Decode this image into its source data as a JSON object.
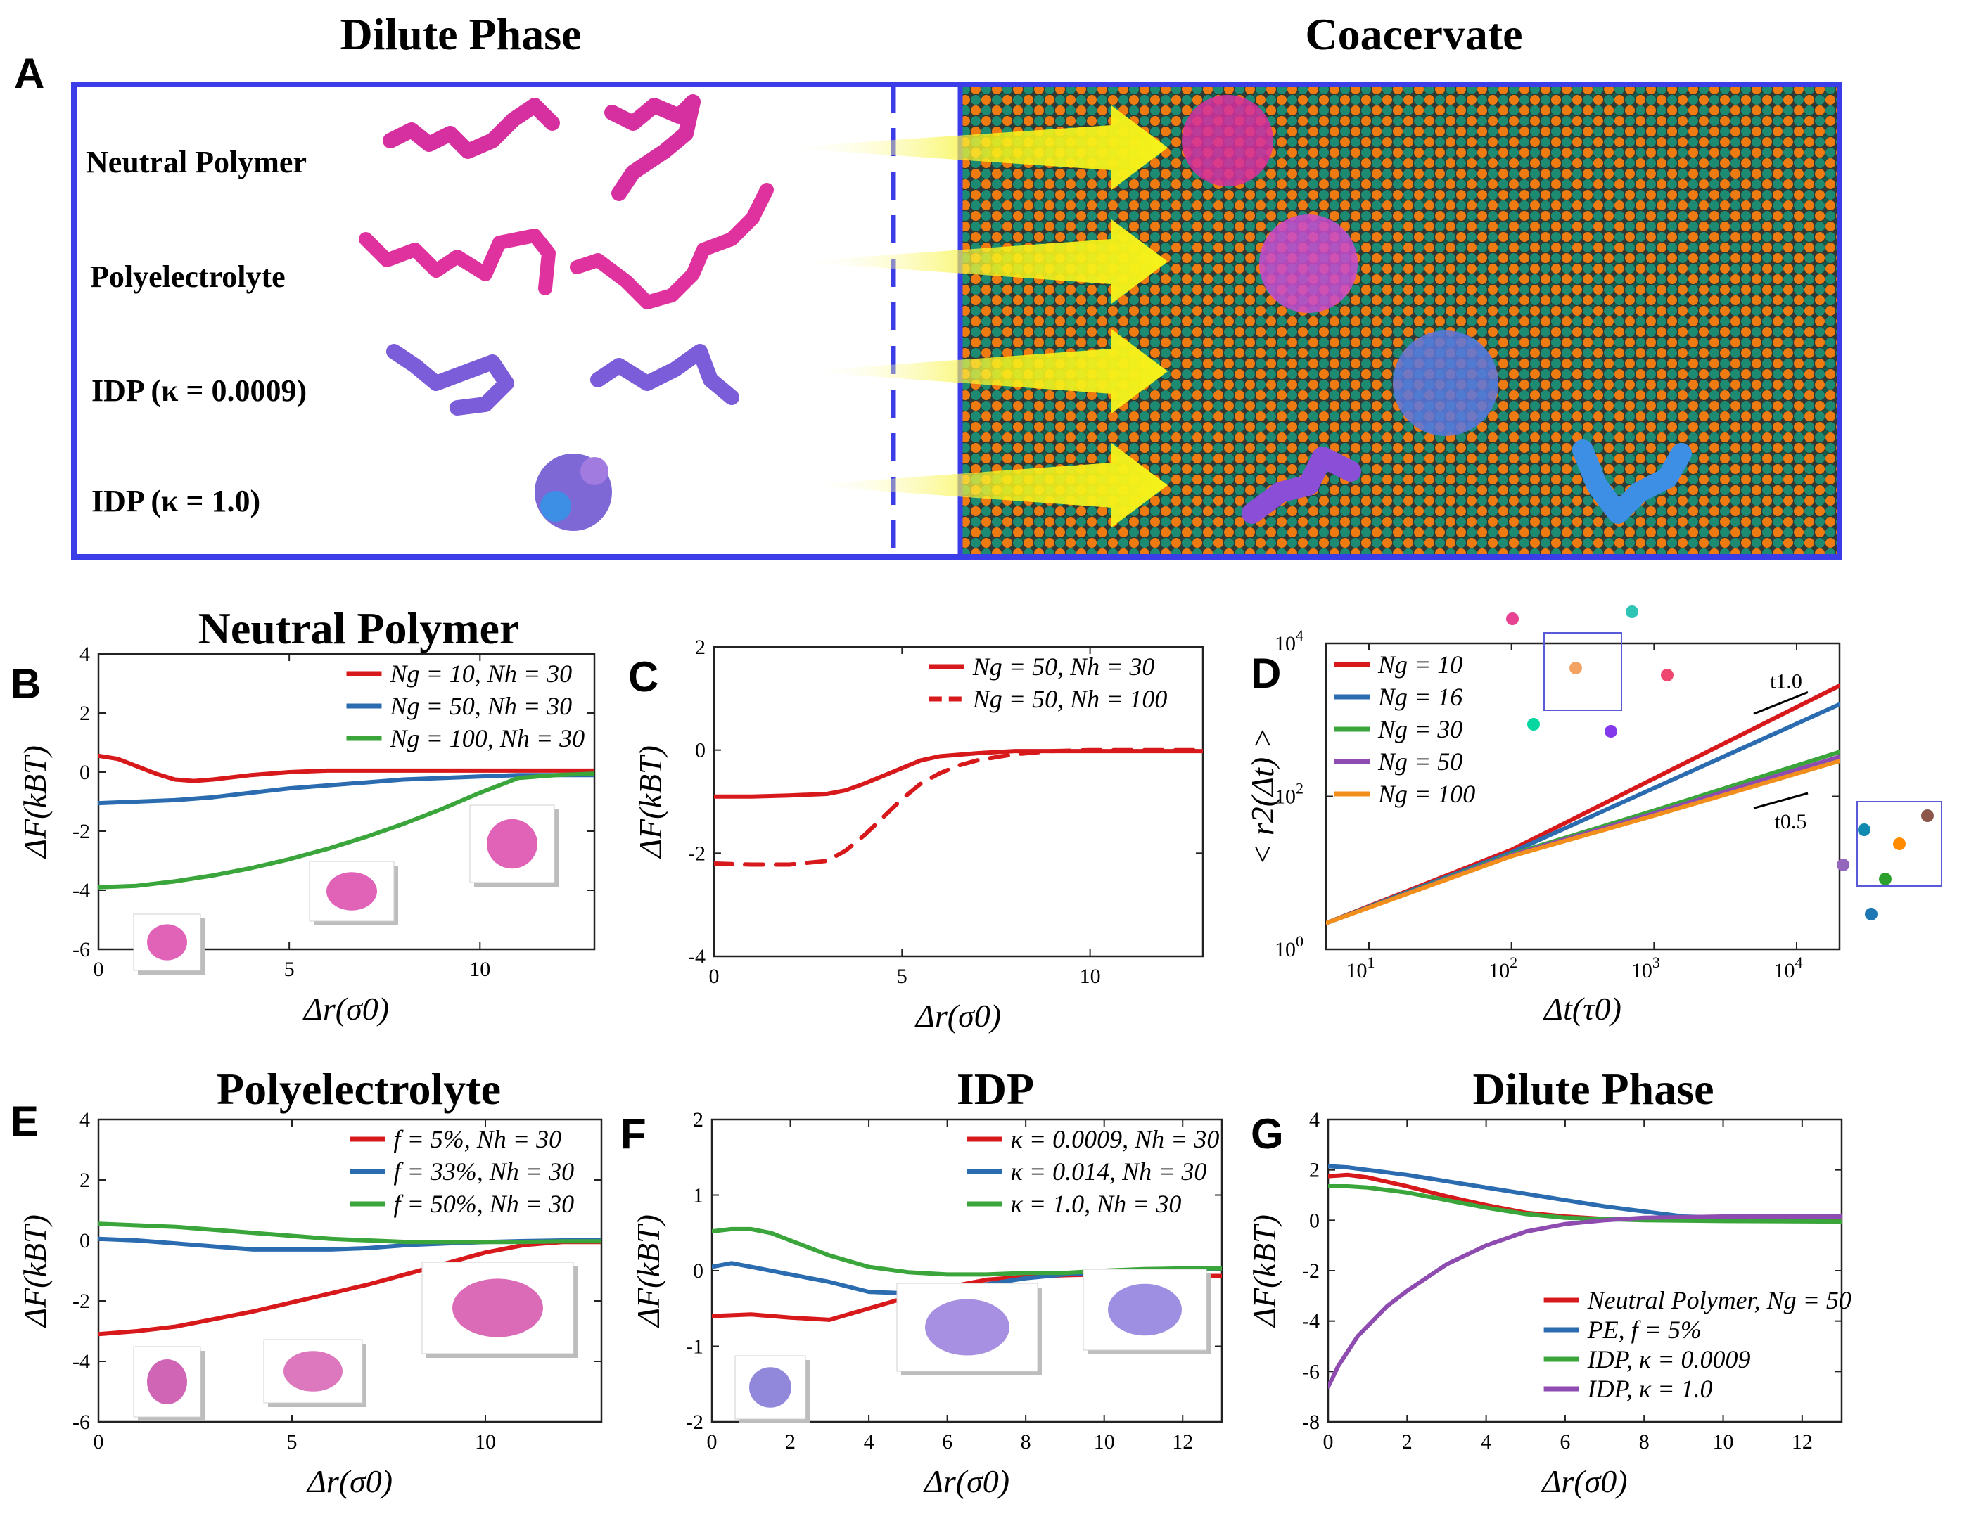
{
  "panel_a": {
    "label": "A",
    "left_title": "Dilute Phase",
    "right_title": "Coacervate",
    "rows": [
      "Neutral Polymer",
      "Polyelectrolyte",
      "IDP (κ = 0.0009)",
      "IDP (κ = 1.0)"
    ],
    "colors": {
      "frame": "#3b3ee8",
      "bead_orange": "#ee7a12",
      "bead_teal": "#1d8b72",
      "pink": "#d62fa0",
      "blue": "#3d8fe6",
      "purple": "#8a4fd6",
      "arrow": "#f6f21a"
    }
  },
  "chart_data": [
    {
      "id": "B",
      "type": "line",
      "panel_label": "B",
      "title": "Neutral Polymer",
      "xlabel": "Δr(σ0)",
      "ylabel": "ΔF(kBT)",
      "xlim": [
        0,
        13
      ],
      "ylim": [
        -6,
        4
      ],
      "xticks": [
        0,
        5,
        10
      ],
      "yticks": [
        -6,
        -4,
        -2,
        0,
        2,
        4
      ],
      "legend": "top-right",
      "series": [
        {
          "name": "Ng = 10, Nh = 30",
          "color": "#d7191c",
          "dash": "solid",
          "x": [
            0,
            0.5,
            1,
            1.5,
            2,
            2.5,
            3,
            4,
            5,
            6,
            8,
            10,
            13
          ],
          "y": [
            0.55,
            0.45,
            0.2,
            -0.05,
            -0.25,
            -0.3,
            -0.25,
            -0.1,
            0,
            0.05,
            0.05,
            0.05,
            0.05
          ]
        },
        {
          "name": "Ng = 50, Nh = 30",
          "color": "#2b6cb0",
          "dash": "solid",
          "x": [
            0,
            1,
            2,
            3,
            4,
            5,
            6,
            7,
            8,
            9,
            10,
            11,
            12,
            13
          ],
          "y": [
            -1.05,
            -1.0,
            -0.95,
            -0.85,
            -0.7,
            -0.55,
            -0.45,
            -0.35,
            -0.25,
            -0.2,
            -0.15,
            -0.1,
            -0.1,
            -0.1
          ]
        },
        {
          "name": "Ng = 100, Nh = 30",
          "color": "#3aa53a",
          "dash": "solid",
          "x": [
            0,
            1,
            2,
            3,
            4,
            5,
            6,
            7,
            8,
            9,
            10,
            11,
            12,
            13
          ],
          "y": [
            -3.9,
            -3.85,
            -3.7,
            -3.5,
            -3.25,
            -2.95,
            -2.6,
            -2.2,
            -1.75,
            -1.25,
            -0.7,
            -0.2,
            -0.1,
            -0.05
          ]
        }
      ]
    },
    {
      "id": "C",
      "type": "line",
      "panel_label": "C",
      "title": "",
      "xlabel": "Δr(σ0)",
      "ylabel": "ΔF(kBT)",
      "xlim": [
        0,
        13
      ],
      "ylim": [
        -4,
        2
      ],
      "xticks": [
        0,
        5,
        10
      ],
      "yticks": [
        -4,
        -2,
        0,
        2
      ],
      "legend": "top-right",
      "series": [
        {
          "name": "Ng = 50, Nh = 30",
          "color": "#d7191c",
          "dash": "solid",
          "x": [
            0,
            1,
            2,
            3,
            3.5,
            4,
            4.5,
            5,
            5.5,
            6,
            7,
            8,
            9,
            10,
            13
          ],
          "y": [
            -0.9,
            -0.9,
            -0.88,
            -0.85,
            -0.78,
            -0.65,
            -0.5,
            -0.35,
            -0.2,
            -0.12,
            -0.06,
            -0.02,
            -0.02,
            -0.02,
            -0.02
          ]
        },
        {
          "name": "Ng = 50, Nh = 100",
          "color": "#d7191c",
          "dash": "dashed",
          "x": [
            0,
            1,
            2,
            3,
            3.5,
            4,
            4.5,
            5,
            5.5,
            6,
            6.5,
            7,
            8,
            9,
            10,
            13
          ],
          "y": [
            -2.2,
            -2.22,
            -2.22,
            -2.15,
            -1.95,
            -1.65,
            -1.3,
            -0.95,
            -0.65,
            -0.45,
            -0.3,
            -0.2,
            -0.08,
            -0.02,
            0,
            0
          ]
        }
      ]
    },
    {
      "id": "D",
      "type": "line",
      "panel_label": "D",
      "title": "",
      "xlabel": "Δt(τ0)",
      "ylabel": "< r2(Δt) >",
      "xscale": "log",
      "yscale": "log",
      "xlim": [
        5,
        20000
      ],
      "ylim": [
        1,
        10000
      ],
      "xticks": [
        10,
        100,
        1000,
        10000
      ],
      "yticks": [
        1,
        100,
        10000
      ],
      "legend": "top-left",
      "annotations": [
        "t1.0",
        "t0.5"
      ],
      "series": [
        {
          "name": "Ng = 10",
          "color": "#d7191c",
          "dash": "solid",
          "x": [
            5,
            100,
            20000
          ],
          "y": [
            2.2,
            20,
            2800
          ]
        },
        {
          "name": "Ng = 16",
          "color": "#2b6cb0",
          "dash": "solid",
          "x": [
            5,
            100,
            20000
          ],
          "y": [
            2.2,
            18.5,
            1600
          ]
        },
        {
          "name": "Ng = 30",
          "color": "#3aa53a",
          "dash": "solid",
          "x": [
            5,
            100,
            1000,
            20000
          ],
          "y": [
            2.2,
            17.5,
            65,
            380
          ]
        },
        {
          "name": "Ng = 50",
          "color": "#8e4bb0",
          "dash": "solid",
          "x": [
            5,
            100,
            1000,
            20000
          ],
          "y": [
            2.2,
            17,
            60,
            330
          ]
        },
        {
          "name": "Ng = 100",
          "color": "#f28e1c",
          "dash": "solid",
          "x": [
            5,
            100,
            1000,
            20000
          ],
          "y": [
            2.2,
            16.5,
            56,
            290
          ]
        }
      ]
    },
    {
      "id": "E",
      "type": "line",
      "panel_label": "E",
      "title": "Polyelectrolyte",
      "xlabel": "Δr(σ0)",
      "ylabel": "ΔF(kBT)",
      "xlim": [
        0,
        13
      ],
      "ylim": [
        -6,
        4
      ],
      "xticks": [
        0,
        5,
        10
      ],
      "yticks": [
        -6,
        -4,
        -2,
        0,
        2,
        4
      ],
      "legend": "top-right",
      "series": [
        {
          "name": "f = 5%, Nh = 30",
          "color": "#d7191c",
          "dash": "solid",
          "x": [
            0,
            1,
            2,
            3,
            4,
            5,
            6,
            7,
            8,
            9,
            10,
            11,
            12,
            13
          ],
          "y": [
            -3.1,
            -3.0,
            -2.85,
            -2.6,
            -2.35,
            -2.05,
            -1.75,
            -1.45,
            -1.1,
            -0.75,
            -0.4,
            -0.15,
            -0.05,
            -0.05
          ]
        },
        {
          "name": "f = 33%, Nh = 30",
          "color": "#2b6cb0",
          "dash": "solid",
          "x": [
            0,
            1,
            2,
            3,
            4,
            5,
            6,
            7,
            8,
            9,
            10,
            11,
            12,
            13
          ],
          "y": [
            0.05,
            0,
            -0.1,
            -0.2,
            -0.3,
            -0.3,
            -0.3,
            -0.25,
            -0.15,
            -0.1,
            -0.05,
            -0.02,
            0,
            0
          ]
        },
        {
          "name": "f = 50%, Nh = 30",
          "color": "#3aa53a",
          "dash": "solid",
          "x": [
            0,
            1,
            2,
            3,
            4,
            5,
            6,
            7,
            8,
            9,
            10,
            11,
            12,
            13
          ],
          "y": [
            0.55,
            0.5,
            0.45,
            0.35,
            0.25,
            0.15,
            0.05,
            0,
            -0.05,
            -0.05,
            -0.05,
            -0.05,
            -0.03,
            -0.03
          ]
        }
      ]
    },
    {
      "id": "F",
      "type": "line",
      "panel_label": "F",
      "title": "IDP",
      "xlabel": "Δr(σ0)",
      "ylabel": "ΔF(kBT)",
      "xlim": [
        0,
        13
      ],
      "ylim": [
        -2,
        2
      ],
      "xticks": [
        0,
        2,
        4,
        6,
        8,
        10,
        12
      ],
      "yticks": [
        -2,
        -1,
        0,
        1,
        2
      ],
      "legend": "top-right",
      "series": [
        {
          "name": "κ = 0.0009, Nh = 30",
          "color": "#d7191c",
          "dash": "solid",
          "x": [
            0,
            1,
            2,
            3,
            4,
            5,
            6,
            7,
            8,
            9,
            10,
            11,
            12,
            13
          ],
          "y": [
            -0.6,
            -0.58,
            -0.62,
            -0.65,
            -0.5,
            -0.35,
            -0.22,
            -0.12,
            -0.08,
            -0.06,
            -0.05,
            -0.06,
            -0.07,
            -0.07
          ]
        },
        {
          "name": "κ = 0.014, Nh = 30",
          "color": "#2b6cb0",
          "dash": "solid",
          "x": [
            0,
            0.5,
            1,
            2,
            3,
            4,
            5,
            6,
            7,
            8,
            9,
            10,
            11,
            12,
            13
          ],
          "y": [
            0.05,
            0.1,
            0.05,
            -0.05,
            -0.15,
            -0.28,
            -0.3,
            -0.25,
            -0.18,
            -0.1,
            -0.05,
            -0.02,
            0,
            0.02,
            0.03
          ]
        },
        {
          "name": "κ = 1.0, Nh = 30",
          "color": "#3aa53a",
          "dash": "solid",
          "x": [
            0,
            0.5,
            1,
            1.5,
            2,
            3,
            4,
            5,
            6,
            7,
            8,
            9,
            10,
            11,
            12,
            13
          ],
          "y": [
            0.52,
            0.55,
            0.55,
            0.5,
            0.4,
            0.2,
            0.05,
            -0.02,
            -0.05,
            -0.05,
            -0.03,
            -0.03,
            0,
            0.02,
            0.03,
            0.03
          ]
        }
      ]
    },
    {
      "id": "G",
      "type": "line",
      "panel_label": "G",
      "title": "Dilute Phase",
      "xlabel": "Δr(σ0)",
      "ylabel": "ΔF(kBT)",
      "xlim": [
        0,
        13
      ],
      "ylim": [
        -8,
        4
      ],
      "xticks": [
        0,
        2,
        4,
        6,
        8,
        10,
        12
      ],
      "yticks": [
        -8,
        -6,
        -4,
        -2,
        0,
        2,
        4
      ],
      "legend": "bottom-right",
      "series": [
        {
          "name": "Neutral Polymer, Ng = 50",
          "color": "#d7191c",
          "dash": "solid",
          "x": [
            0,
            0.5,
            1,
            2,
            3,
            4,
            5,
            6,
            7,
            8,
            10,
            13
          ],
          "y": [
            1.75,
            1.8,
            1.7,
            1.35,
            0.95,
            0.6,
            0.3,
            0.15,
            0.05,
            0.02,
            0,
            0
          ]
        },
        {
          "name": "PE, f = 5%",
          "color": "#2b6cb0",
          "dash": "solid",
          "x": [
            0,
            0.5,
            1,
            2,
            3,
            4,
            5,
            6,
            7,
            8,
            9,
            10,
            11,
            12,
            13
          ],
          "y": [
            2.15,
            2.1,
            2.0,
            1.8,
            1.55,
            1.3,
            1.05,
            0.8,
            0.55,
            0.35,
            0.15,
            0.1,
            0.12,
            0.15,
            0.15
          ]
        },
        {
          "name": "IDP, κ = 0.0009",
          "color": "#3aa53a",
          "dash": "solid",
          "x": [
            0,
            0.5,
            1,
            2,
            3,
            4,
            5,
            6,
            8,
            10,
            13
          ],
          "y": [
            1.35,
            1.35,
            1.3,
            1.1,
            0.8,
            0.5,
            0.25,
            0.1,
            0,
            -0.03,
            -0.05
          ]
        },
        {
          "name": "IDP, κ = 1.0",
          "color": "#8e4bb0",
          "dash": "solid",
          "x": [
            0,
            0.1,
            0.25,
            0.5,
            0.75,
            1,
            1.5,
            2,
            3,
            4,
            5,
            6,
            7,
            8,
            10,
            13
          ],
          "y": [
            -6.6,
            -6.3,
            -5.8,
            -5.2,
            -4.6,
            -4.2,
            -3.4,
            -2.8,
            -1.75,
            -1.0,
            -0.45,
            -0.15,
            0,
            0.1,
            0.15,
            0.15
          ]
        }
      ]
    }
  ]
}
